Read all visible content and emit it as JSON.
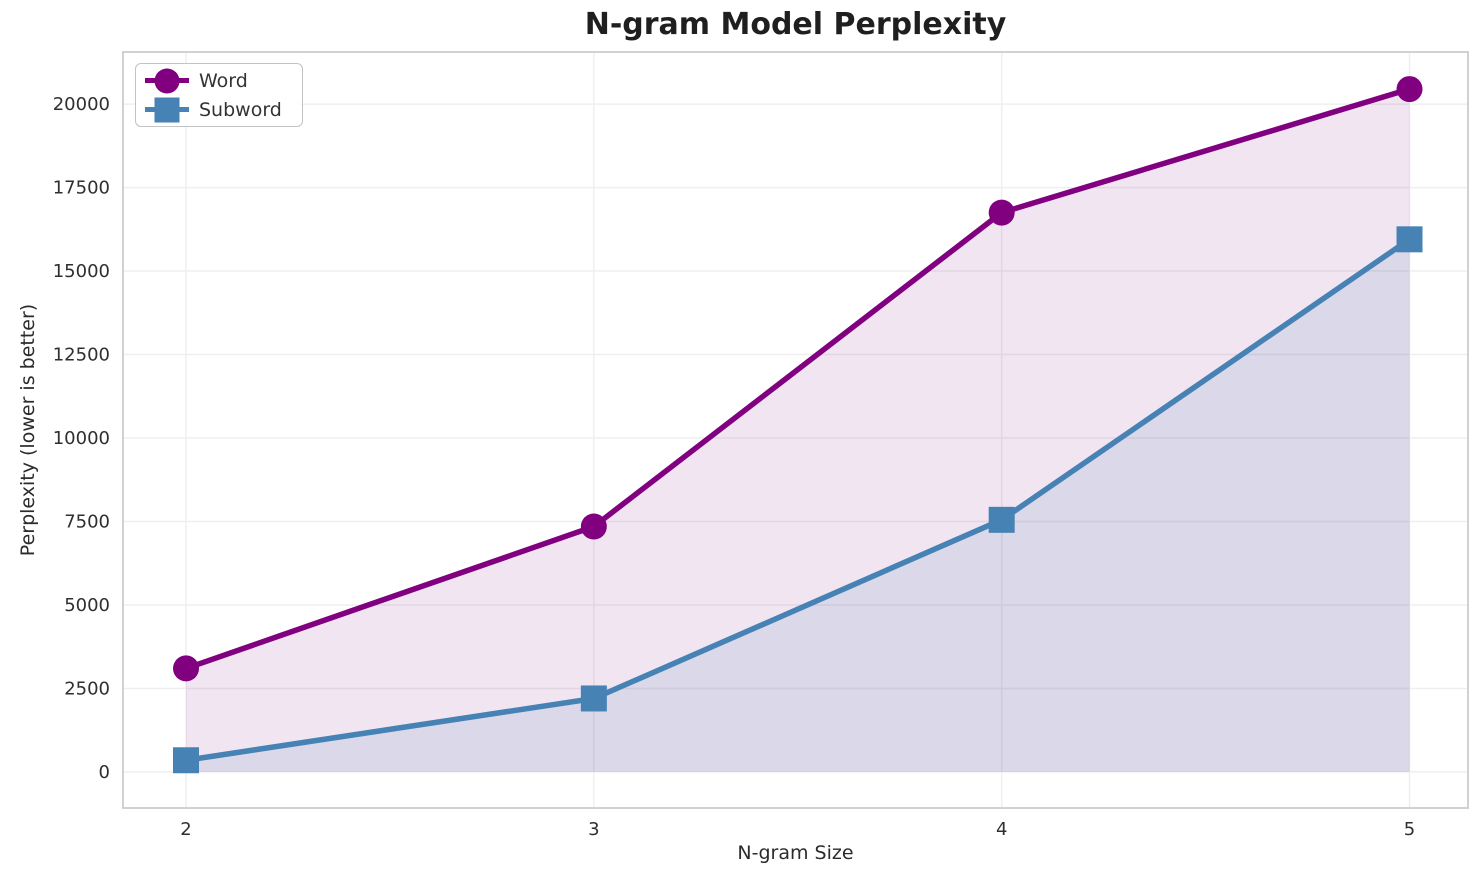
{
  "chart_data": {
    "type": "line",
    "title": "N-gram Model Perplexity",
    "xlabel": "N-gram Size",
    "ylabel": "Perplexity (lower is better)",
    "x": [
      2,
      3,
      4,
      5
    ],
    "x_tick_labels": [
      "2",
      "3",
      "4",
      "5"
    ],
    "y_ticks": [
      0,
      2500,
      5000,
      7500,
      10000,
      12500,
      15000,
      17500,
      20000
    ],
    "y_tick_labels": [
      "0",
      "2500",
      "5000",
      "7500",
      "10000",
      "12500",
      "15000",
      "17500",
      "20000"
    ],
    "xlim": [
      1.8455,
      5.1434
    ],
    "ylim": [
      -1080,
      21560
    ],
    "grid": true,
    "legend_position": "upper left",
    "series": [
      {
        "name": "Word",
        "values": [
          3100,
          7350,
          16750,
          20450
        ],
        "color": "#800080",
        "marker": "circle",
        "fill_opacity": 0.1
      },
      {
        "name": "Subword",
        "values": [
          350,
          2200,
          7550,
          15950
        ],
        "color": "#4682b4",
        "marker": "square",
        "fill_opacity": 0.13
      }
    ],
    "colors": {
      "grid": "#efefef",
      "spine": "#cccccc",
      "tick_text": "#2f2f2f",
      "title_text": "#1f1f1f"
    }
  }
}
